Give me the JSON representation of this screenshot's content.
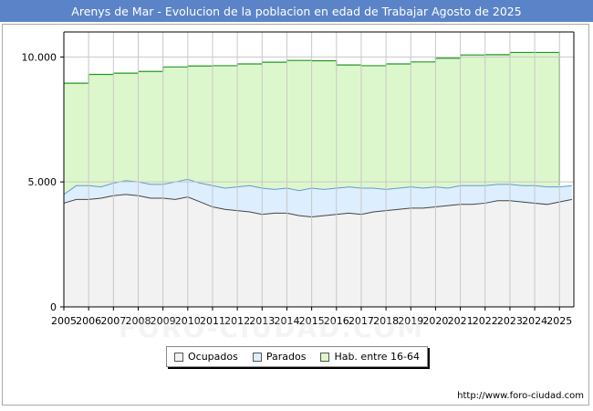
{
  "title": "Arenys de Mar - Evolucion de la poblacion en edad de Trabajar Agosto de 2025",
  "source": "http://www.foro-ciudad.com",
  "watermark": "FORO-CIUDAD.COM",
  "colors": {
    "title_bg": "#5b84c8",
    "ocupados_fill": "#f2f2f2",
    "ocupados_line": "#444444",
    "parados_fill": "#ddeeff",
    "parados_line": "#6699cc",
    "hab_fill": "#ddf7cc",
    "hab_line": "#229922"
  },
  "chart_data": {
    "type": "area",
    "title": "Arenys de Mar - Evolucion de la poblacion en edad de Trabajar Agosto de 2025",
    "xlim": [
      2005,
      2025.58
    ],
    "ylim": [
      0,
      11000
    ],
    "x_ticks": [
      "2005",
      "2006",
      "2007",
      "2008",
      "2009",
      "2010",
      "2011",
      "2012",
      "2013",
      "2014",
      "2015",
      "2016",
      "2017",
      "2018",
      "2019",
      "2020",
      "2021",
      "2022",
      "2023",
      "2024",
      "2025"
    ],
    "y_ticks": [
      {
        "value": 0,
        "label": "0"
      },
      {
        "value": 5000,
        "label": "5.000"
      },
      {
        "value": 10000,
        "label": "10.000"
      }
    ],
    "x": [
      2005.0,
      2005.5,
      2006.0,
      2006.5,
      2007.0,
      2007.5,
      2008.0,
      2008.5,
      2009.0,
      2009.5,
      2010.0,
      2010.5,
      2011.0,
      2011.5,
      2012.0,
      2012.5,
      2013.0,
      2013.5,
      2014.0,
      2014.5,
      2015.0,
      2015.5,
      2016.0,
      2016.5,
      2017.0,
      2017.5,
      2018.0,
      2018.5,
      2019.0,
      2019.5,
      2020.0,
      2020.5,
      2021.0,
      2021.5,
      2022.0,
      2022.5,
      2023.0,
      2023.5,
      2024.0,
      2024.5,
      2025.0,
      2025.5
    ],
    "series": [
      {
        "name": "Hab. entre 16-64",
        "x": [
          2005,
          2006,
          2007,
          2008,
          2009,
          2010,
          2011,
          2012,
          2013,
          2014,
          2015,
          2016,
          2017,
          2018,
          2019,
          2020,
          2021,
          2022,
          2023,
          2024
        ],
        "values": [
          8950,
          9300,
          9350,
          9420,
          9600,
          9640,
          9650,
          9720,
          9790,
          9860,
          9850,
          9680,
          9650,
          9720,
          9800,
          9950,
          10080,
          10090,
          10180,
          10180
        ]
      },
      {
        "name": "Parados",
        "values": [
          4500,
          4850,
          4850,
          4800,
          4950,
          5050,
          5000,
          4900,
          4900,
          5000,
          5100,
          4950,
          4850,
          4750,
          4800,
          4850,
          4750,
          4700,
          4750,
          4650,
          4750,
          4700,
          4750,
          4800,
          4750,
          4750,
          4700,
          4750,
          4800,
          4750,
          4800,
          4750,
          4850,
          4850,
          4850,
          4900,
          4900,
          4850,
          4850,
          4800,
          4800,
          4850
        ]
      },
      {
        "name": "Ocupados",
        "values": [
          4150,
          4300,
          4300,
          4350,
          4450,
          4500,
          4450,
          4350,
          4350,
          4300,
          4400,
          4200,
          4000,
          3900,
          3850,
          3800,
          3700,
          3750,
          3750,
          3650,
          3600,
          3650,
          3700,
          3750,
          3700,
          3800,
          3850,
          3900,
          3950,
          3950,
          4000,
          4050,
          4100,
          4100,
          4150,
          4250,
          4250,
          4200,
          4150,
          4100,
          4200,
          4300
        ]
      }
    ]
  },
  "legend": {
    "items": [
      {
        "label": "Ocupados"
      },
      {
        "label": "Parados"
      },
      {
        "label": "Hab. entre 16-64"
      }
    ]
  }
}
